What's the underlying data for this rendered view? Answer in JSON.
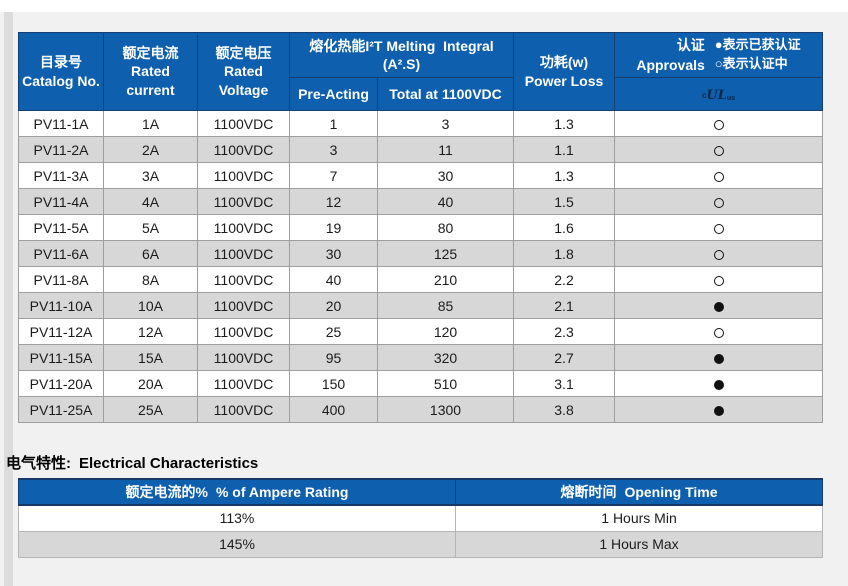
{
  "colors": {
    "header_blue": "#0e5fad",
    "header_border": "#173e6e",
    "row_alt_gray": "#d7d7d7",
    "body_border": "#9e9e9e",
    "page_background": "#f1f1f1"
  },
  "main_table": {
    "headers": {
      "catalog": {
        "zh": "目录号",
        "en": "Catalog No."
      },
      "rated_current": {
        "zh": "额定电流",
        "en1": "Rated",
        "en2": "current"
      },
      "rated_voltage": {
        "zh": "额定电压",
        "en1": "Rated",
        "en2": "Voltage"
      },
      "melting": {
        "line1": "熔化热能I²T Melting  Integral",
        "line2": "(A².S)",
        "sub_pre": "Pre-Acting",
        "sub_total": "Total at 1100VDC"
      },
      "power_loss": {
        "zh": "功耗(w)",
        "en": "Power Loss"
      },
      "approvals": {
        "zh": "认证",
        "en": "Approvals",
        "legend_certified": "●表示已获认证",
        "legend_pending": "○表示认证中",
        "mark": {
          "prefix": "c",
          "main": "UL",
          "suffix": "us"
        }
      }
    },
    "rows": [
      {
        "catalog": "PV11-1A",
        "current": "1A",
        "voltage": "1100VDC",
        "pre_acting": "1",
        "total": "3",
        "power_loss": "1.3",
        "approval": "pending"
      },
      {
        "catalog": "PV11-2A",
        "current": "2A",
        "voltage": "1100VDC",
        "pre_acting": "3",
        "total": "11",
        "power_loss": "1.1",
        "approval": "pending"
      },
      {
        "catalog": "PV11-3A",
        "current": "3A",
        "voltage": "1100VDC",
        "pre_acting": "7",
        "total": "30",
        "power_loss": "1.3",
        "approval": "pending"
      },
      {
        "catalog": "PV11-4A",
        "current": "4A",
        "voltage": "1100VDC",
        "pre_acting": "12",
        "total": "40",
        "power_loss": "1.5",
        "approval": "pending"
      },
      {
        "catalog": "PV11-5A",
        "current": "5A",
        "voltage": "1100VDC",
        "pre_acting": "19",
        "total": "80",
        "power_loss": "1.6",
        "approval": "pending"
      },
      {
        "catalog": "PV11-6A",
        "current": "6A",
        "voltage": "1100VDC",
        "pre_acting": "30",
        "total": "125",
        "power_loss": "1.8",
        "approval": "pending"
      },
      {
        "catalog": "PV11-8A",
        "current": "8A",
        "voltage": "1100VDC",
        "pre_acting": "40",
        "total": "210",
        "power_loss": "2.2",
        "approval": "pending"
      },
      {
        "catalog": "PV11-10A",
        "current": "10A",
        "voltage": "1100VDC",
        "pre_acting": "20",
        "total": "85",
        "power_loss": "2.1",
        "approval": "certified"
      },
      {
        "catalog": "PV11-12A",
        "current": "12A",
        "voltage": "1100VDC",
        "pre_acting": "25",
        "total": "120",
        "power_loss": "2.3",
        "approval": "pending"
      },
      {
        "catalog": "PV11-15A",
        "current": "15A",
        "voltage": "1100VDC",
        "pre_acting": "95",
        "total": "320",
        "power_loss": "2.7",
        "approval": "certified"
      },
      {
        "catalog": "PV11-20A",
        "current": "20A",
        "voltage": "1100VDC",
        "pre_acting": "150",
        "total": "510",
        "power_loss": "3.1",
        "approval": "certified"
      },
      {
        "catalog": "PV11-25A",
        "current": "25A",
        "voltage": "1100VDC",
        "pre_acting": "400",
        "total": "1300",
        "power_loss": "3.8",
        "approval": "certified"
      }
    ]
  },
  "section2": {
    "title_zh": "电气特性:",
    "title_en": "Electrical Characteristics",
    "table": {
      "col1_zh": "额定电流的%",
      "col1_en": "% of Ampere Rating",
      "col2_zh": "熔断时间",
      "col2_en": "Opening Time",
      "rows": [
        {
          "rating": "113%",
          "time": "1 Hours Min"
        },
        {
          "rating": "145%",
          "time": "1 Hours Max"
        }
      ]
    }
  }
}
